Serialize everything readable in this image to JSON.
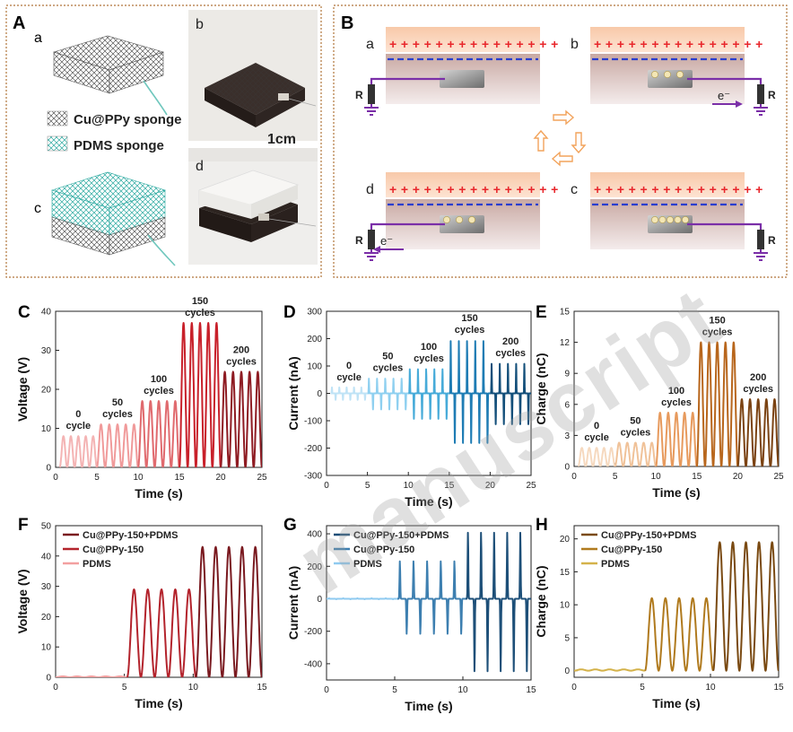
{
  "panelA": {
    "letter": "A",
    "sub_a": "a",
    "sub_b": "b",
    "sub_c": "c",
    "sub_d": "d",
    "legend": [
      "Cu@PPy sponge",
      "PDMS sponge"
    ],
    "scale": "1cm"
  },
  "panelB": {
    "letter": "B",
    "subs": [
      "a",
      "b",
      "c",
      "d"
    ],
    "resistor": "R",
    "electron": "e⁻",
    "colors": {
      "positive": "#e8262b",
      "negative": "#2a3ecf",
      "wire": "#7b2fa8",
      "arrow": "#f2a35b"
    }
  },
  "chart_data": [
    {
      "id": "C",
      "type": "line",
      "xlabel": "Time (s)",
      "ylabel": "Voltage (V)",
      "xlim": [
        0,
        25
      ],
      "ylim": [
        0,
        40
      ],
      "xticks": [
        "0",
        "5",
        "10",
        "15",
        "20",
        "25"
      ],
      "yticks": [
        "0",
        "10",
        "20",
        "30",
        "40"
      ],
      "series": [
        {
          "label": [
            "0",
            "cycle"
          ],
          "t0": 0.5,
          "t1": 5,
          "peak": 8,
          "color": "#f4b4b4"
        },
        {
          "label": [
            "50",
            "cycles"
          ],
          "t0": 5,
          "t1": 10,
          "peak": 11,
          "color": "#f09a9a"
        },
        {
          "label": [
            "100",
            "cycles"
          ],
          "t0": 10,
          "t1": 15,
          "peak": 17,
          "color": "#e06a6e"
        },
        {
          "label": [
            "150",
            "cycles"
          ],
          "t0": 15,
          "t1": 20,
          "peak": 37,
          "color": "#c8202a"
        },
        {
          "label": [
            "200",
            "cycles"
          ],
          "t0": 20,
          "t1": 25,
          "peak": 24.5,
          "color": "#8e1b22"
        }
      ]
    },
    {
      "id": "D",
      "type": "line",
      "xlabel": "Time (s)",
      "ylabel": "Current (nA)",
      "xlim": [
        0,
        25
      ],
      "ylim": [
        -300,
        300
      ],
      "xticks": [
        "0",
        "5",
        "10",
        "15",
        "20",
        "25"
      ],
      "yticks": [
        "-300",
        "-200",
        "-100",
        "0",
        "100",
        "200",
        "300"
      ],
      "series": [
        {
          "label": [
            "0",
            "cycle"
          ],
          "t0": 0.5,
          "t1": 5,
          "peak": 22,
          "trough": -24,
          "color": "#bfe3f6"
        },
        {
          "label": [
            "50",
            "cycles"
          ],
          "t0": 5,
          "t1": 10,
          "peak": 55,
          "trough": -60,
          "color": "#8fd0f0"
        },
        {
          "label": [
            "100",
            "cycles"
          ],
          "t0": 10,
          "t1": 15,
          "peak": 90,
          "trough": -95,
          "color": "#47abd9"
        },
        {
          "label": [
            "150",
            "cycles"
          ],
          "t0": 15,
          "t1": 20,
          "peak": 195,
          "trough": -185,
          "color": "#1e7cb4"
        },
        {
          "label": [
            "200",
            "cycles"
          ],
          "t0": 20,
          "t1": 25,
          "peak": 110,
          "trough": -115,
          "color": "#134f7a"
        }
      ]
    },
    {
      "id": "E",
      "type": "line",
      "xlabel": "Time (s)",
      "ylabel": "Charge (nC)",
      "xlim": [
        0,
        25
      ],
      "ylim": [
        0,
        15
      ],
      "xticks": [
        "0",
        "5",
        "10",
        "15",
        "20",
        "25"
      ],
      "yticks": [
        "0",
        "3",
        "6",
        "9",
        "12",
        "15"
      ],
      "series": [
        {
          "label": [
            "0",
            "cycle"
          ],
          "t0": 0.5,
          "t1": 5,
          "peak": 1.8,
          "color": "#f6d9bf"
        },
        {
          "label": [
            "50",
            "cycles"
          ],
          "t0": 5,
          "t1": 10,
          "peak": 2.3,
          "color": "#f0c299"
        },
        {
          "label": [
            "100",
            "cycles"
          ],
          "t0": 10,
          "t1": 15,
          "peak": 5.2,
          "color": "#e79a5d"
        },
        {
          "label": [
            "150",
            "cycles"
          ],
          "t0": 15,
          "t1": 20,
          "peak": 12,
          "color": "#b8661c"
        },
        {
          "label": [
            "200",
            "cycles"
          ],
          "t0": 20,
          "t1": 25,
          "peak": 6.5,
          "color": "#7a4212"
        }
      ]
    },
    {
      "id": "F",
      "type": "line",
      "xlabel": "Time (s)",
      "ylabel": "Voltage (V)",
      "xlim": [
        0,
        15
      ],
      "ylim": [
        0,
        50
      ],
      "xticks": [
        "0",
        "5",
        "10",
        "15"
      ],
      "yticks": [
        "0",
        "10",
        "20",
        "30",
        "40",
        "50"
      ],
      "legend": [
        "Cu@PPy-150+PDMS",
        "Cu@PPy-150",
        "PDMS"
      ],
      "legend_colors": [
        "#7a1a20",
        "#b3232c",
        "#f3a0a0"
      ],
      "series": [
        {
          "t0": 0,
          "t1": 5.2,
          "peak": 0.3,
          "color": "#f3a0a0"
        },
        {
          "t0": 5.2,
          "t1": 10.2,
          "peak": 29,
          "color": "#b3232c"
        },
        {
          "t0": 10.2,
          "t1": 15,
          "peak": 43,
          "color": "#7a1a20"
        }
      ]
    },
    {
      "id": "G",
      "type": "line",
      "xlabel": "Time (s)",
      "ylabel": "Current (nA)",
      "xlim": [
        0,
        15
      ],
      "ylim": [
        -500,
        450
      ],
      "xticks": [
        "0",
        "5",
        "10",
        "15"
      ],
      "yticks": [
        "-400",
        "-200",
        "0",
        "200",
        "400"
      ],
      "legend": [
        "Cu@PPy-150+PDMS",
        "Cu@PPy-150",
        "PDMS"
      ],
      "legend_colors": [
        "#1d4f78",
        "#3d7fb0",
        "#8fcaf0"
      ],
      "series": [
        {
          "t0": 0,
          "t1": 5.2,
          "peak": 3,
          "trough": -3,
          "color": "#8fcaf0"
        },
        {
          "t0": 5.2,
          "t1": 10.2,
          "peak": 235,
          "trough": -220,
          "color": "#3d7fb0"
        },
        {
          "t0": 10.2,
          "t1": 15,
          "peak": 415,
          "trough": -455,
          "color": "#1d4f78"
        }
      ]
    },
    {
      "id": "H",
      "type": "line",
      "xlabel": "Time (s)",
      "ylabel": "Charge (nC)",
      "xlim": [
        0,
        15
      ],
      "ylim": [
        -1,
        22
      ],
      "xticks": [
        "0",
        "5",
        "10",
        "15"
      ],
      "yticks": [
        "0",
        "5",
        "10",
        "15",
        "20"
      ],
      "legend": [
        "Cu@PPy-150+PDMS",
        "Cu@PPy-150",
        "PDMS"
      ],
      "legend_colors": [
        "#7a4a12",
        "#b07a1e",
        "#d4b24a"
      ],
      "series": [
        {
          "t0": 0,
          "t1": 5.2,
          "peak": 0.2,
          "color": "#d4b24a"
        },
        {
          "t0": 5.2,
          "t1": 10.2,
          "peak": 11,
          "color": "#b07a1e"
        },
        {
          "t0": 10.2,
          "t1": 15,
          "peak": 19.5,
          "color": "#7a4a12"
        }
      ]
    }
  ],
  "watermark": "manuscript"
}
